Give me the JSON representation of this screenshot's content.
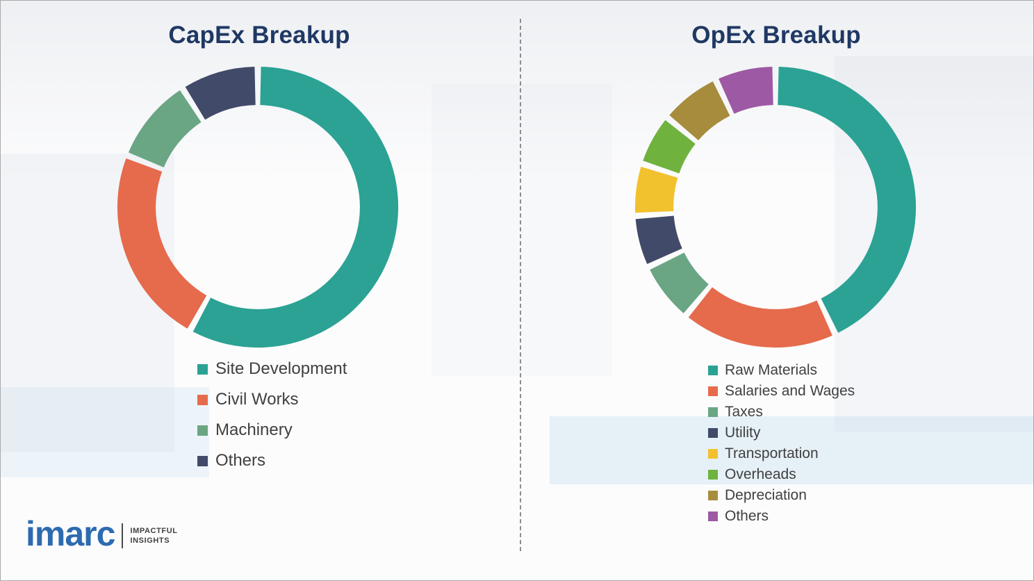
{
  "titles": {
    "left": "CapEx Breakup",
    "right": "OpEx Breakup"
  },
  "chart_data": [
    {
      "type": "pie",
      "subtype": "donut",
      "title": "CapEx Breakup",
      "legend_position": "below-left",
      "units": "percent",
      "segments": [
        {
          "label": "Site Development",
          "value": 58,
          "color": "#2BA294"
        },
        {
          "label": "Civil Works",
          "value": 23,
          "color": "#E56B4C"
        },
        {
          "label": "Machinery",
          "value": 10,
          "color": "#6AA684"
        },
        {
          "label": "Others",
          "value": 9,
          "color": "#414A68"
        }
      ]
    },
    {
      "type": "pie",
      "subtype": "donut",
      "title": "OpEx Breakup",
      "legend_position": "below-left",
      "units": "percent",
      "segments": [
        {
          "label": "Raw Materials",
          "value": 43,
          "color": "#2BA294"
        },
        {
          "label": "Salaries and Wages",
          "value": 18,
          "color": "#E56B4C"
        },
        {
          "label": "Taxes",
          "value": 7,
          "color": "#6AA684"
        },
        {
          "label": "Utility",
          "value": 6,
          "color": "#414A68"
        },
        {
          "label": "Transportation",
          "value": 6,
          "color": "#F2C12E"
        },
        {
          "label": "Overheads",
          "value": 6,
          "color": "#6FB23D"
        },
        {
          "label": "Depreciation",
          "value": 7,
          "color": "#A68C3C"
        },
        {
          "label": "Others",
          "value": 7,
          "color": "#9D59A3"
        }
      ]
    }
  ],
  "logo": {
    "wordmark": "imarc",
    "tagline_line1": "IMPACTFUL",
    "tagline_line2": "INSIGHTS"
  },
  "colors": {
    "title": "#1F3864",
    "legend_text": "#404040",
    "logo_blue": "#2D6BB0"
  }
}
